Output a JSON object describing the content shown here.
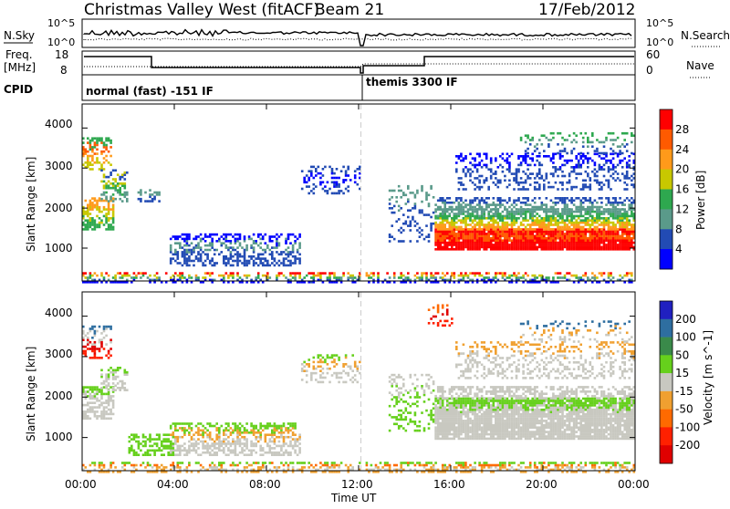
{
  "header": {
    "station": "Christmas Valley West (fitACF)",
    "beam": "Beam 21",
    "date": "17/Feb/2012"
  },
  "panels": {
    "noise": {
      "left_label": "N.Sky",
      "right_label": "N.Search",
      "ticks": [
        "10^5",
        "10^0"
      ]
    },
    "freq": {
      "left_label_1": "Freq.",
      "left_label_2": "[MHz]",
      "right_label": "Nave",
      "left_ticks": [
        "18",
        "8"
      ],
      "right_ticks": [
        "60",
        "0"
      ]
    },
    "cpid": {
      "label": "CPID",
      "modes": [
        "normal (fast) -151 IF",
        "themis 3300 IF"
      ]
    }
  },
  "chart_data": [
    {
      "type": "heatmap",
      "name": "power",
      "ylabel": "Slant Range [km]",
      "yticks": [
        "4000",
        "3000",
        "2000",
        "1000"
      ],
      "ylim": [
        180,
        4600
      ],
      "xlim": [
        0,
        24
      ],
      "colorbar": {
        "label": "Power [dB]",
        "ticks": [
          "28",
          "24",
          "20",
          "16",
          "12",
          "8",
          "4"
        ],
        "colors": [
          "#ff0000",
          "#ff5a00",
          "#ff9a1a",
          "#c8c800",
          "#2ea84f",
          "#5a9a8a",
          "#224bb4",
          "#0000ff"
        ]
      },
      "regions": [
        {
          "t": [
            0.0,
            1.4
          ],
          "r": [
            1500,
            2300
          ],
          "c": [
            4,
            3,
            2
          ],
          "d": 0.55
        },
        {
          "t": [
            0.0,
            1.3
          ],
          "r": [
            3000,
            3800
          ],
          "c": [
            3,
            2,
            1,
            4
          ],
          "d": 0.45
        },
        {
          "t": [
            0.8,
            2.0
          ],
          "r": [
            2200,
            3000
          ],
          "c": [
            5,
            4,
            3,
            6
          ],
          "d": 0.4
        },
        {
          "t": [
            2.4,
            3.4
          ],
          "r": [
            2200,
            2500
          ],
          "c": [
            6,
            5
          ],
          "d": 0.35
        },
        {
          "t": [
            3.8,
            9.4
          ],
          "r": [
            600,
            1400
          ],
          "c": [
            6,
            6,
            5,
            7
          ],
          "d": 0.45
        },
        {
          "t": [
            9.5,
            12.0
          ],
          "r": [
            2400,
            3100
          ],
          "c": [
            6,
            7,
            6
          ],
          "d": 0.3
        },
        {
          "t": [
            0.0,
            12.0
          ],
          "r": [
            180,
            420
          ],
          "c": [
            7,
            6,
            5,
            4,
            3,
            2,
            0
          ],
          "d": 0.4
        },
        {
          "t": [
            12.3,
            24.0
          ],
          "r": [
            180,
            420
          ],
          "c": [
            7,
            6,
            5,
            4,
            3,
            2,
            0
          ],
          "d": 0.45
        },
        {
          "t": [
            13.3,
            15.2
          ],
          "r": [
            1200,
            2600
          ],
          "c": [
            6,
            6,
            5
          ],
          "d": 0.2
        },
        {
          "t": [
            15.3,
            24.0
          ],
          "r": [
            1000,
            1500
          ],
          "c": [
            0,
            0,
            1,
            0
          ],
          "d": 0.95
        },
        {
          "t": [
            15.3,
            24.0
          ],
          "r": [
            1500,
            2000
          ],
          "c": [
            2,
            3,
            4,
            5
          ],
          "d": 0.75
        },
        {
          "t": [
            15.3,
            24.0
          ],
          "r": [
            2000,
            2300
          ],
          "c": [
            5,
            6
          ],
          "d": 0.5
        },
        {
          "t": [
            16.2,
            24.0
          ],
          "r": [
            2500,
            3400
          ],
          "c": [
            6,
            6,
            7
          ],
          "d": 0.3
        },
        {
          "t": [
            19.0,
            24.0
          ],
          "r": [
            3400,
            3900
          ],
          "c": [
            6,
            5,
            4
          ],
          "d": 0.2
        }
      ]
    },
    {
      "type": "heatmap",
      "name": "velocity",
      "ylabel": "Slant Range [km]",
      "xlabel": "Time UT",
      "yticks": [
        "4000",
        "3000",
        "2000",
        "1000"
      ],
      "xticks": [
        "00:00",
        "04:00",
        "08:00",
        "12:00",
        "16:00",
        "20:00",
        "00:00"
      ],
      "ylim": [
        180,
        4600
      ],
      "xlim": [
        0,
        24
      ],
      "colorbar": {
        "label": "Velocity [m s^-1]",
        "ticks": [
          "200",
          "100",
          "50",
          "15",
          "-15",
          "-50",
          "-100",
          "-200"
        ],
        "colors": [
          "#2020c0",
          "#2e6ea0",
          "#3a8a4a",
          "#66d01c",
          "#c8c8c0",
          "#f0a030",
          "#ff6a00",
          "#ff2000",
          "#e00000"
        ]
      },
      "regions": [
        {
          "t": [
            0.0,
            1.4
          ],
          "r": [
            1500,
            2300
          ],
          "c": [
            4,
            4,
            4,
            3
          ],
          "d": 0.6
        },
        {
          "t": [
            0.0,
            1.3
          ],
          "r": [
            3000,
            3800
          ],
          "c": [
            7,
            8,
            4,
            1
          ],
          "d": 0.4
        },
        {
          "t": [
            0.8,
            2.0
          ],
          "r": [
            2200,
            2800
          ],
          "c": [
            4,
            4,
            3
          ],
          "d": 0.45
        },
        {
          "t": [
            3.8,
            9.4
          ],
          "r": [
            600,
            1400
          ],
          "c": [
            4,
            4,
            5,
            3
          ],
          "d": 0.55
        },
        {
          "t": [
            2.0,
            4.0
          ],
          "r": [
            600,
            1100
          ],
          "c": [
            3,
            3
          ],
          "d": 0.5
        },
        {
          "t": [
            9.5,
            12.0
          ],
          "r": [
            2400,
            3100
          ],
          "c": [
            4,
            4,
            5,
            3
          ],
          "d": 0.3
        },
        {
          "t": [
            0.0,
            12.0
          ],
          "r": [
            180,
            420
          ],
          "c": [
            5,
            4,
            5,
            6,
            3
          ],
          "d": 0.4
        },
        {
          "t": [
            12.3,
            24.0
          ],
          "r": [
            180,
            420
          ],
          "c": [
            5,
            4,
            5,
            6,
            3
          ],
          "d": 0.45
        },
        {
          "t": [
            13.3,
            15.2
          ],
          "r": [
            1200,
            2600
          ],
          "c": [
            3,
            3,
            4
          ],
          "d": 0.25
        },
        {
          "t": [
            15.3,
            24.0
          ],
          "r": [
            1000,
            2000
          ],
          "c": [
            4,
            4,
            4,
            4,
            3
          ],
          "d": 0.9
        },
        {
          "t": [
            15.3,
            24.0
          ],
          "r": [
            2000,
            2300
          ],
          "c": [
            4,
            4
          ],
          "d": 0.5
        },
        {
          "t": [
            16.2,
            24.0
          ],
          "r": [
            2500,
            3400
          ],
          "c": [
            4,
            4,
            5
          ],
          "d": 0.3
        },
        {
          "t": [
            15.0,
            16.0
          ],
          "r": [
            3800,
            4300
          ],
          "c": [
            7,
            8,
            6
          ],
          "d": 0.35
        },
        {
          "t": [
            19.0,
            24.0
          ],
          "r": [
            3400,
            3900
          ],
          "c": [
            4,
            5,
            1
          ],
          "d": 0.2
        }
      ]
    }
  ]
}
